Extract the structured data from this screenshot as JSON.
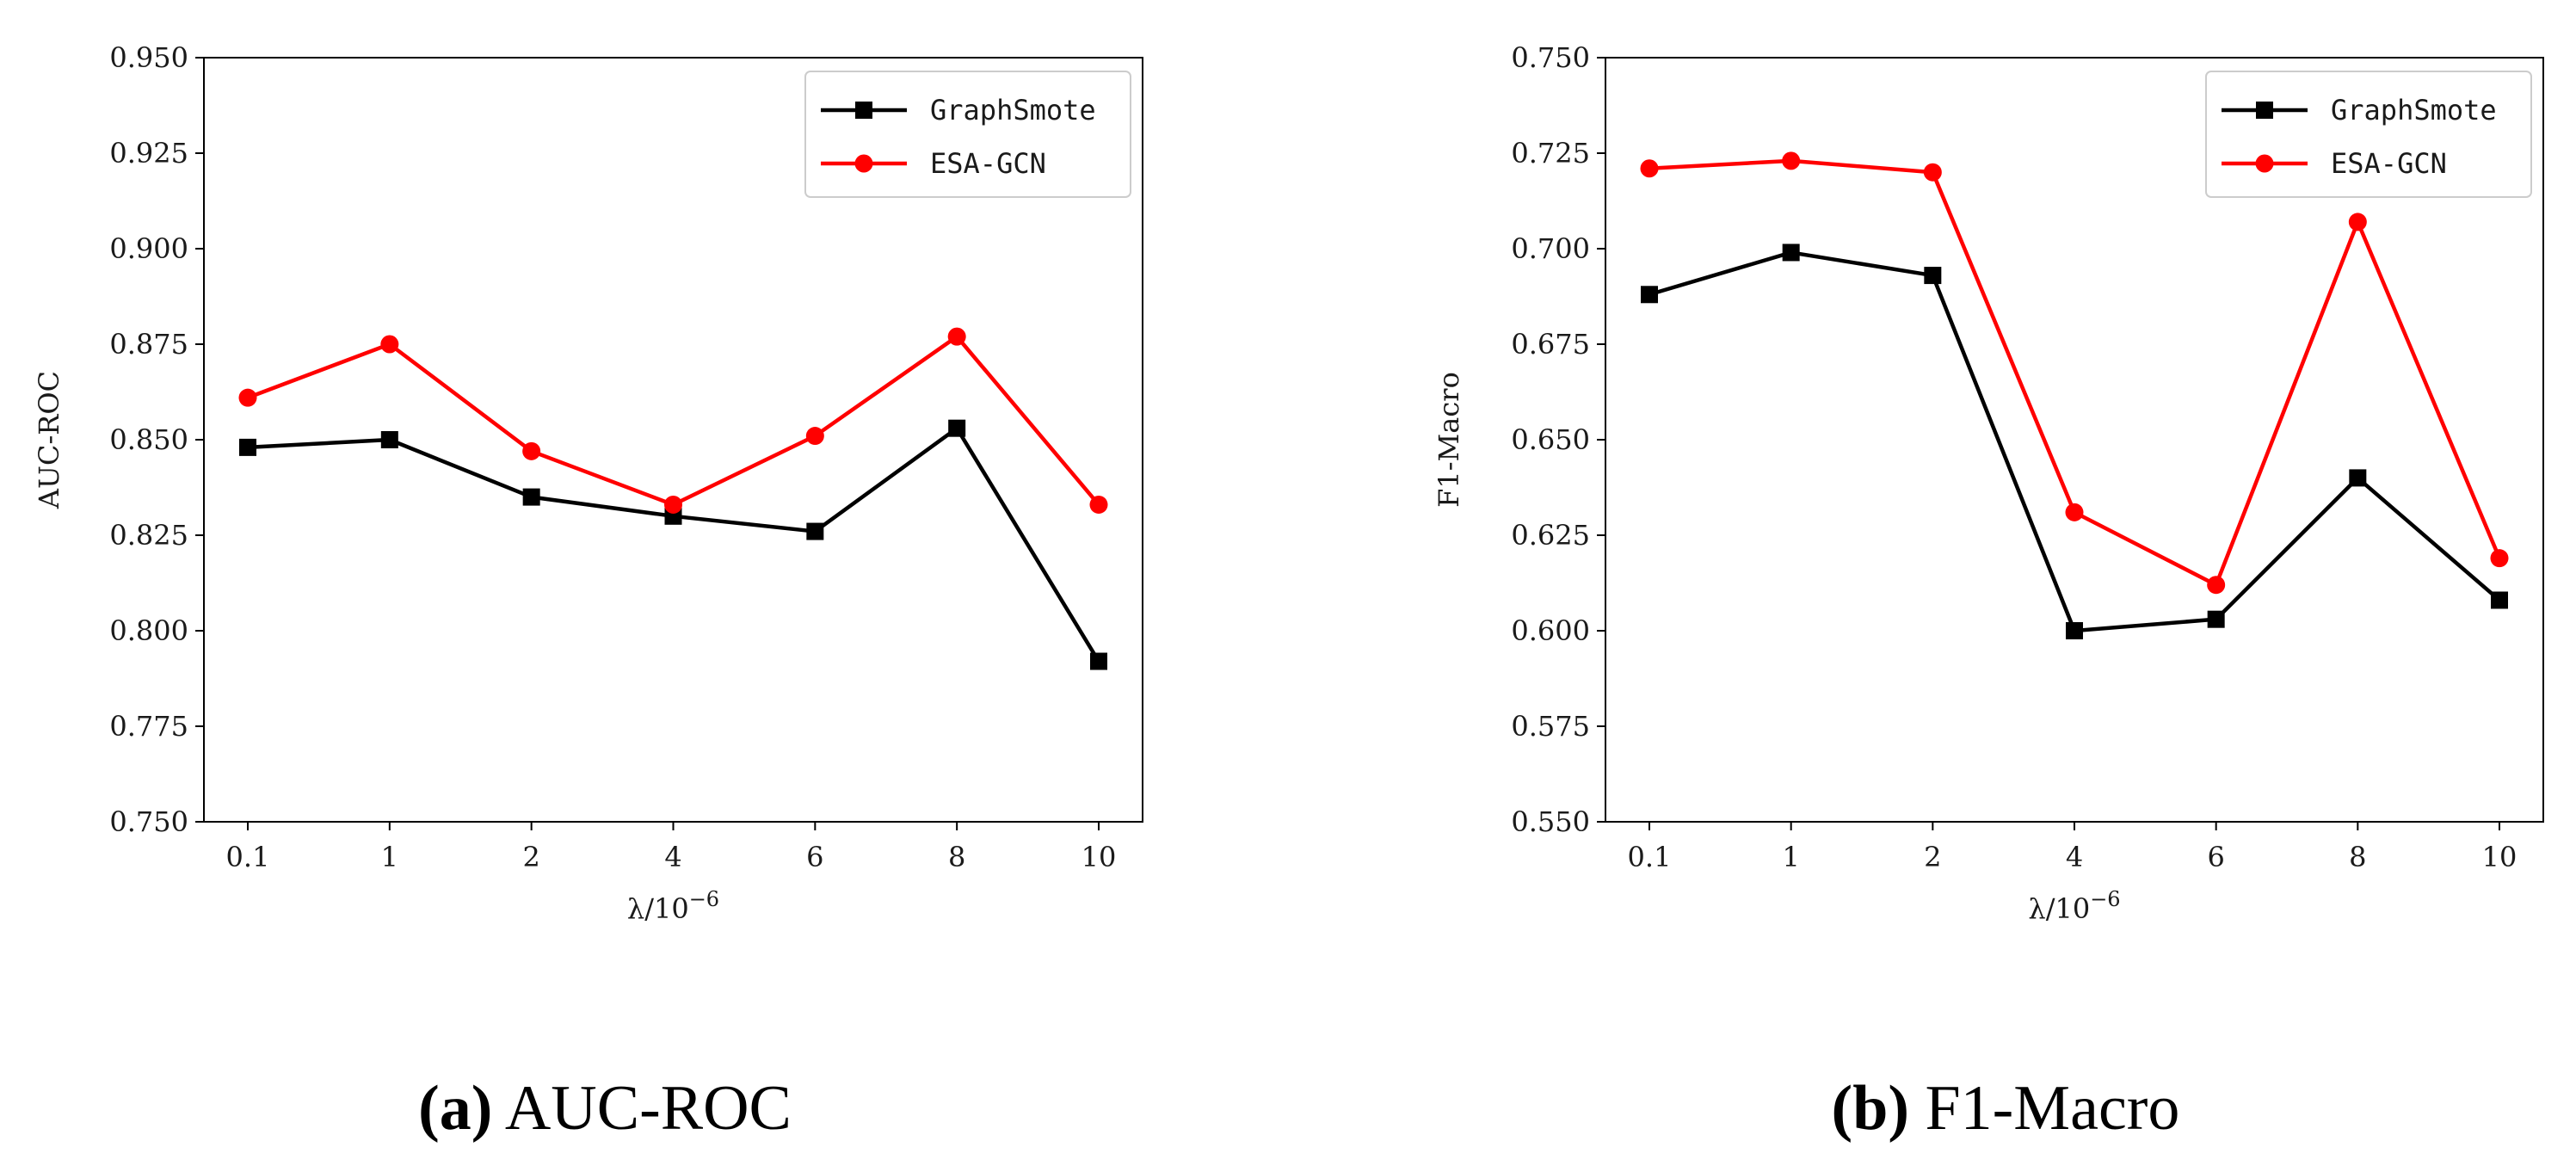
{
  "colors": {
    "graphsmote": "#000000",
    "esa_gcn": "#ff0000"
  },
  "chart_data": [
    {
      "type": "line",
      "id": "a",
      "categories": [
        "0.1",
        "1",
        "2",
        "4",
        "6",
        "8",
        "10"
      ],
      "series": [
        {
          "name": "GraphSmote",
          "marker": "square",
          "color": "#000000",
          "values": [
            0.848,
            0.85,
            0.835,
            0.83,
            0.826,
            0.853,
            0.792
          ]
        },
        {
          "name": "ESA-GCN",
          "marker": "circle",
          "color": "#ff0000",
          "values": [
            0.861,
            0.875,
            0.847,
            0.833,
            0.851,
            0.877,
            0.833
          ]
        }
      ],
      "ylabel": "AUC-ROC",
      "xlabel_base": "λ/10",
      "xlabel_exp": "−6",
      "ylim": [
        0.75,
        0.95
      ],
      "yticks": [
        "0.750",
        "0.775",
        "0.800",
        "0.825",
        "0.850",
        "0.875",
        "0.900",
        "0.925",
        "0.950"
      ],
      "legend_position": "top-right",
      "caption_letter": "(a)",
      "caption_text": " AUC-ROC"
    },
    {
      "type": "line",
      "id": "b",
      "categories": [
        "0.1",
        "1",
        "2",
        "4",
        "6",
        "8",
        "10"
      ],
      "series": [
        {
          "name": "GraphSmote",
          "marker": "square",
          "color": "#000000",
          "values": [
            0.688,
            0.699,
            0.693,
            0.6,
            0.603,
            0.64,
            0.608
          ]
        },
        {
          "name": "ESA-GCN",
          "marker": "circle",
          "color": "#ff0000",
          "values": [
            0.721,
            0.723,
            0.72,
            0.631,
            0.612,
            0.707,
            0.619
          ]
        }
      ],
      "ylabel": "F1-Macro",
      "xlabel_base": "λ/10",
      "xlabel_exp": "−6",
      "ylim": [
        0.55,
        0.75
      ],
      "yticks": [
        "0.550",
        "0.575",
        "0.600",
        "0.625",
        "0.650",
        "0.675",
        "0.700",
        "0.725",
        "0.750"
      ],
      "legend_position": "top-right",
      "caption_letter": "(b)",
      "caption_text": " F1-Macro"
    }
  ]
}
